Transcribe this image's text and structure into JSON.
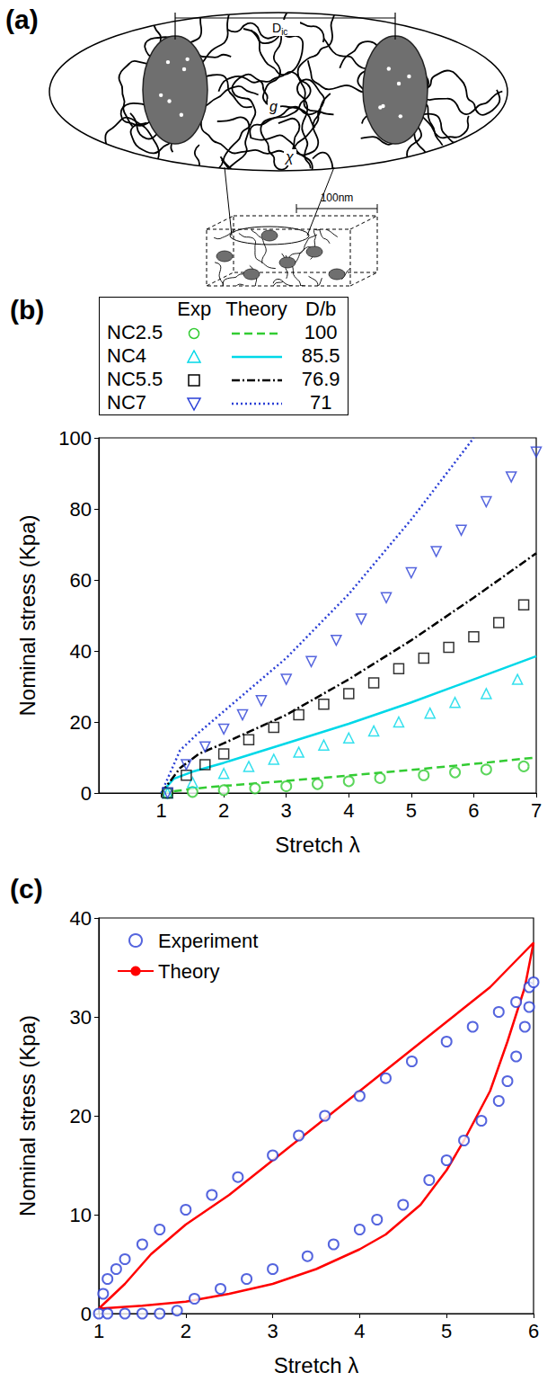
{
  "diagram": {
    "title": "(a)",
    "spacing": {
      "text": "D",
      "subscript": "ic"
    },
    "chain_label_1": "g",
    "chain_label_2": "χ",
    "scale_bar": "100nm"
  },
  "chart_data": [
    {
      "type": "scatter",
      "title": "(b)",
      "x_label": "Stretch λ",
      "y_label": "Nominal stress (Kpa)",
      "xlim": [
        0,
        7
      ],
      "xticks": [
        1,
        2,
        3,
        4,
        5,
        6,
        7
      ],
      "ylim": [
        0,
        100
      ],
      "yticks": [
        0,
        20,
        40,
        60,
        80,
        100
      ],
      "grid": false,
      "legend": "top",
      "legend_columns": [
        "Exp",
        "Theory",
        "D/b"
      ],
      "series": [
        {
          "name": "NC2.5",
          "type": "scatter",
          "color": "#33cc33",
          "marker": "circle",
          "x": [
            1.1,
            1.5,
            2.0,
            2.5,
            3.0,
            3.5,
            4.0,
            4.5,
            5.2,
            5.7,
            6.2,
            6.8
          ],
          "values": [
            0,
            0.3,
            0.8,
            1.3,
            1.9,
            2.5,
            3.3,
            4.2,
            5.0,
            5.8,
            6.6,
            7.5
          ]
        },
        {
          "name": "NC2.5",
          "type": "line",
          "color": "#33cc33",
          "line_style": "dashed",
          "d_over_b": 100,
          "x": [
            1,
            1.5,
            2,
            3,
            4,
            5,
            6,
            7
          ],
          "values": [
            0,
            1.2,
            2,
            3.4,
            4.9,
            6.5,
            8.2,
            10
          ]
        },
        {
          "name": "NC4",
          "type": "scatter",
          "color": "#00d8e8",
          "marker": "triangle",
          "x": [
            1.1,
            1.5,
            2.0,
            2.4,
            2.8,
            3.2,
            3.6,
            4.0,
            4.4,
            4.8,
            5.3,
            5.7,
            6.2,
            6.7
          ],
          "values": [
            0,
            3,
            5.5,
            7.5,
            9.5,
            11.5,
            13.5,
            15.5,
            17.5,
            20,
            22.5,
            25.5,
            28,
            32
          ]
        },
        {
          "name": "NC4",
          "type": "line",
          "color": "#00d8e8",
          "line_style": "solid",
          "d_over_b": 85.5,
          "x": [
            1,
            1.2,
            1.5,
            2,
            3,
            4,
            5,
            6,
            7
          ],
          "values": [
            0,
            4,
            6,
            8.5,
            14,
            19.5,
            25.5,
            32,
            38.5
          ]
        },
        {
          "name": "NC5.5",
          "type": "scatter",
          "color": "#000000",
          "marker": "square",
          "x": [
            1.1,
            1.4,
            1.7,
            2.0,
            2.4,
            2.8,
            3.2,
            3.6,
            4.0,
            4.4,
            4.8,
            5.2,
            5.6,
            6.0,
            6.4,
            6.8
          ],
          "values": [
            0,
            5,
            8,
            11,
            15,
            18.5,
            22,
            25,
            28,
            31,
            35,
            38,
            41,
            44,
            48,
            53
          ]
        },
        {
          "name": "NC5.5",
          "type": "line",
          "color": "#000000",
          "line_style": "dashdot",
          "d_over_b": 76.9,
          "x": [
            1,
            1.3,
            1.6,
            2,
            3,
            4,
            5,
            6,
            7
          ],
          "values": [
            0,
            7,
            11,
            14,
            22,
            32,
            43,
            55,
            67.5
          ]
        },
        {
          "name": "NC7",
          "type": "scatter",
          "color": "#2a3fd6",
          "marker": "triangle-down",
          "x": [
            1.1,
            1.4,
            1.7,
            2.0,
            2.3,
            2.6,
            3.0,
            3.4,
            3.8,
            4.2,
            4.6,
            5.0,
            5.4,
            5.8,
            6.2,
            6.6,
            7.0
          ],
          "values": [
            0,
            8,
            13,
            18,
            22,
            26,
            32,
            37,
            43,
            49,
            55,
            62,
            68,
            74,
            82,
            89,
            96
          ]
        },
        {
          "name": "NC7",
          "type": "line",
          "color": "#2a3fd6",
          "line_style": "dotted",
          "d_over_b": 71,
          "x": [
            1,
            1.3,
            1.6,
            2,
            3,
            4,
            5,
            6
          ],
          "values": [
            0,
            12,
            17,
            23,
            38,
            56,
            77,
            100
          ]
        }
      ]
    },
    {
      "type": "scatter",
      "title": "(c)",
      "x_label": "Stretch λ",
      "y_label": "Nominal stress (Kpa)",
      "xlim": [
        1,
        6
      ],
      "xticks": [
        1,
        2,
        3,
        4,
        5,
        6
      ],
      "ylim": [
        0,
        40
      ],
      "yticks": [
        0,
        10,
        20,
        30,
        40
      ],
      "grid": false,
      "legend": "upper left",
      "series": [
        {
          "name": "Experiment",
          "type": "scatter",
          "color": "#2a3fd6",
          "marker": "circle",
          "x": [
            1.0,
            1.05,
            1.1,
            1.2,
            1.3,
            1.5,
            1.7,
            2.0,
            2.3,
            2.6,
            3.0,
            3.3,
            3.6,
            4.0,
            4.3,
            4.6,
            5.0,
            5.3,
            5.6,
            5.8,
            5.95,
            6.0,
            5.95,
            5.9,
            5.8,
            5.7,
            5.6,
            5.4,
            5.2,
            5.0,
            4.8,
            4.5,
            4.2,
            4.0,
            3.7,
            3.4,
            3.0,
            2.7,
            2.4,
            2.1,
            1.9,
            1.7,
            1.5,
            1.3,
            1.1
          ],
          "values": [
            0,
            2,
            3.5,
            4.5,
            5.5,
            7,
            8.5,
            10.5,
            12,
            13.8,
            16,
            18,
            20,
            22,
            23.8,
            25.5,
            27.5,
            29,
            30.5,
            31.5,
            33,
            33.5,
            31,
            29,
            26,
            23.5,
            21.5,
            19.5,
            17.5,
            15.5,
            13.5,
            11,
            9.5,
            8.5,
            7,
            5.8,
            4.5,
            3.5,
            2.5,
            1.5,
            0.3,
            0,
            0,
            0,
            0
          ]
        },
        {
          "name": "Theory",
          "type": "line",
          "color": "#ff0000",
          "line_style": "solid",
          "x": [
            1,
            1.3,
            1.6,
            2,
            2.5,
            3,
            3.5,
            4,
            4.5,
            5,
            5.5,
            6,
            5.9,
            5.7,
            5.5,
            5.2,
            5,
            4.7,
            4.3,
            4,
            3.5,
            3,
            2.5,
            2,
            1.5,
            1
          ],
          "values": [
            0.5,
            3,
            6,
            9,
            12,
            15.5,
            19,
            22.5,
            26,
            29.5,
            33,
            37.5,
            33,
            27.5,
            22.5,
            17.5,
            14.5,
            11,
            8,
            6.5,
            4.5,
            3,
            2,
            1.2,
            0.8,
            0.5
          ]
        }
      ]
    }
  ]
}
